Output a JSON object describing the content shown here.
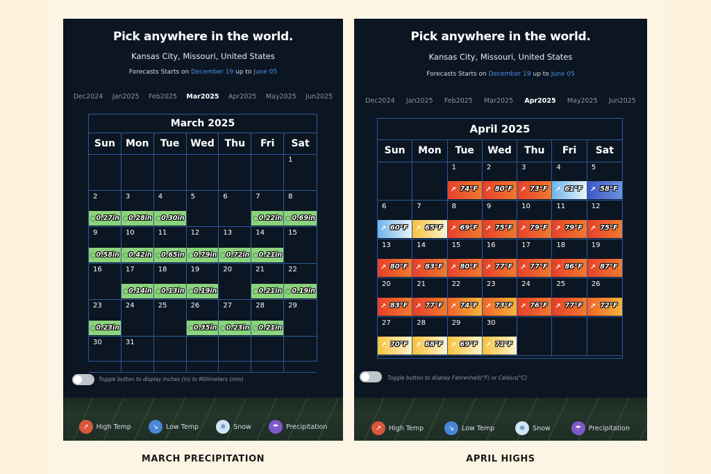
{
  "panels": {
    "left": {
      "title": "Pick anywhere in the world.",
      "location": "Kansas City, Missouri, United States",
      "forecast": {
        "prefix": "Forecasts Starts on",
        "start": "December 19",
        "mid": "up to",
        "end": "June 05"
      },
      "months": [
        "Dec2024",
        "Jan2025",
        "Feb2025",
        "Mar2025",
        "Apr2025",
        "May2025",
        "Jun2025"
      ],
      "selected_month": "Mar2025",
      "calendar_title": "March 2025",
      "weekdays": [
        "Sun",
        "Mon",
        "Tue",
        "Wed",
        "Thu",
        "Fri",
        "Sat"
      ],
      "toggle_text": "Toggle button to display Inches (in) to Millimeters (mm)",
      "legend": [
        {
          "label": "High Temp",
          "color": "#d9573b",
          "icon": "arrow-up-right-icon"
        },
        {
          "label": "Low Temp",
          "color": "#4a86d4",
          "icon": "arrow-down-right-icon"
        },
        {
          "label": "Snow",
          "color": "#cfe6f6",
          "icon": "snowflake-icon"
        },
        {
          "label": "Precipitation",
          "color": "#7e58c9",
          "icon": "umbrella-icon"
        }
      ],
      "caption": "MARCH PRECIPITATION"
    },
    "right": {
      "title": "Pick anywhere in the world.",
      "location": "Kansas City, Missouri, United States",
      "forecast": {
        "prefix": "Forecasts Starts on",
        "start": "December 19",
        "mid": "up to",
        "end": "June 05"
      },
      "months": [
        "Dec2024",
        "Jan2025",
        "Feb2025",
        "Mar2025",
        "Apr2025",
        "May2025",
        "Jun2025"
      ],
      "selected_month": "Apr2025",
      "calendar_title": "April 2025",
      "weekdays": [
        "Sun",
        "Mon",
        "Tue",
        "Wed",
        "Thu",
        "Fri",
        "Sat"
      ],
      "toggle_text": "Toggle button to display Fahrenheit(°F) or Celsius(°C)",
      "legend": [
        {
          "label": "High Temp",
          "color": "#d9573b",
          "icon": "arrow-up-right-icon"
        },
        {
          "label": "Low Temp",
          "color": "#4a86d4",
          "icon": "arrow-down-right-icon"
        },
        {
          "label": "Snow",
          "color": "#cfe6f6",
          "icon": "snowflake-icon"
        },
        {
          "label": "Precipitation",
          "color": "#7e58c9",
          "icon": "umbrella-icon"
        }
      ],
      "caption": "APRIL HIGHS"
    }
  },
  "march_days": [
    {
      "d": "",
      "p": ""
    },
    {
      "d": "",
      "p": ""
    },
    {
      "d": "",
      "p": ""
    },
    {
      "d": "",
      "p": ""
    },
    {
      "d": "",
      "p": ""
    },
    {
      "d": "",
      "p": ""
    },
    {
      "d": "1",
      "p": ""
    },
    {
      "d": "2",
      "p": "0.27in"
    },
    {
      "d": "3",
      "p": "0.28in"
    },
    {
      "d": "4",
      "p": "0.30in"
    },
    {
      "d": "5",
      "p": ""
    },
    {
      "d": "6",
      "p": ""
    },
    {
      "d": "7",
      "p": "0.22in"
    },
    {
      "d": "8",
      "p": "0.69in"
    },
    {
      "d": "9",
      "p": "0.58in"
    },
    {
      "d": "10",
      "p": "0.42in"
    },
    {
      "d": "11",
      "p": "0.65in"
    },
    {
      "d": "12",
      "p": "0.79in"
    },
    {
      "d": "13",
      "p": "0.72in"
    },
    {
      "d": "14",
      "p": "0.21in"
    },
    {
      "d": "15",
      "p": ""
    },
    {
      "d": "16",
      "p": ""
    },
    {
      "d": "17",
      "p": "0.14in"
    },
    {
      "d": "18",
      "p": "0.13in"
    },
    {
      "d": "19",
      "p": "0.19in"
    },
    {
      "d": "20",
      "p": ""
    },
    {
      "d": "21",
      "p": "0.21in"
    },
    {
      "d": "22",
      "p": "0.19in"
    },
    {
      "d": "23",
      "p": "0.23in"
    },
    {
      "d": "24",
      "p": ""
    },
    {
      "d": "25",
      "p": ""
    },
    {
      "d": "26",
      "p": "0.35in"
    },
    {
      "d": "27",
      "p": "0.23in"
    },
    {
      "d": "28",
      "p": "0.21in"
    },
    {
      "d": "29",
      "p": ""
    },
    {
      "d": "30",
      "p": ""
    },
    {
      "d": "31",
      "p": ""
    },
    {
      "d": "",
      "p": ""
    },
    {
      "d": "",
      "p": ""
    },
    {
      "d": "",
      "p": ""
    },
    {
      "d": "",
      "p": ""
    },
    {
      "d": "",
      "p": ""
    }
  ],
  "april_days": [
    {
      "d": "",
      "t": "",
      "c": ""
    },
    {
      "d": "",
      "t": "",
      "c": ""
    },
    {
      "d": "1",
      "t": "74°F",
      "c": "red"
    },
    {
      "d": "2",
      "t": "80°F",
      "c": "red"
    },
    {
      "d": "3",
      "t": "73°F",
      "c": "red"
    },
    {
      "d": "4",
      "t": "61°F",
      "c": "lightblue"
    },
    {
      "d": "5",
      "t": "58°F",
      "c": "blue"
    },
    {
      "d": "6",
      "t": "60°F",
      "c": "lightblue"
    },
    {
      "d": "7",
      "t": "65°F",
      "c": "yellow"
    },
    {
      "d": "8",
      "t": "69°F",
      "c": "red"
    },
    {
      "d": "9",
      "t": "75°F",
      "c": "red"
    },
    {
      "d": "10",
      "t": "79°F",
      "c": "red"
    },
    {
      "d": "11",
      "t": "79°F",
      "c": "red"
    },
    {
      "d": "12",
      "t": "75°F",
      "c": "red"
    },
    {
      "d": "13",
      "t": "80°F",
      "c": "red"
    },
    {
      "d": "14",
      "t": "83°F",
      "c": "red"
    },
    {
      "d": "15",
      "t": "80°F",
      "c": "red"
    },
    {
      "d": "16",
      "t": "77°F",
      "c": "red"
    },
    {
      "d": "17",
      "t": "77°F",
      "c": "red"
    },
    {
      "d": "18",
      "t": "86°F",
      "c": "red"
    },
    {
      "d": "19",
      "t": "87°F",
      "c": "red"
    },
    {
      "d": "20",
      "t": "83°F",
      "c": "red"
    },
    {
      "d": "21",
      "t": "77°F",
      "c": "red"
    },
    {
      "d": "22",
      "t": "74°F",
      "c": "orange"
    },
    {
      "d": "23",
      "t": "73°F",
      "c": "orange"
    },
    {
      "d": "24",
      "t": "76°F",
      "c": "red"
    },
    {
      "d": "25",
      "t": "77°F",
      "c": "red"
    },
    {
      "d": "26",
      "t": "72°F",
      "c": "orange"
    },
    {
      "d": "27",
      "t": "70°F",
      "c": "yellow"
    },
    {
      "d": "28",
      "t": "68°F",
      "c": "yellow"
    },
    {
      "d": "29",
      "t": "69°F",
      "c": "yellow"
    },
    {
      "d": "30",
      "t": "71°F",
      "c": "yellow"
    },
    {
      "d": "",
      "t": "",
      "c": ""
    },
    {
      "d": "",
      "t": "",
      "c": ""
    },
    {
      "d": "",
      "t": "",
      "c": ""
    }
  ],
  "temp_colors": {
    "red": "#e8452a",
    "orange": "#f08a2a",
    "yellow": "#f6d24a",
    "lightblue": "#8cc8ee",
    "blue": "#4a6fd0"
  }
}
